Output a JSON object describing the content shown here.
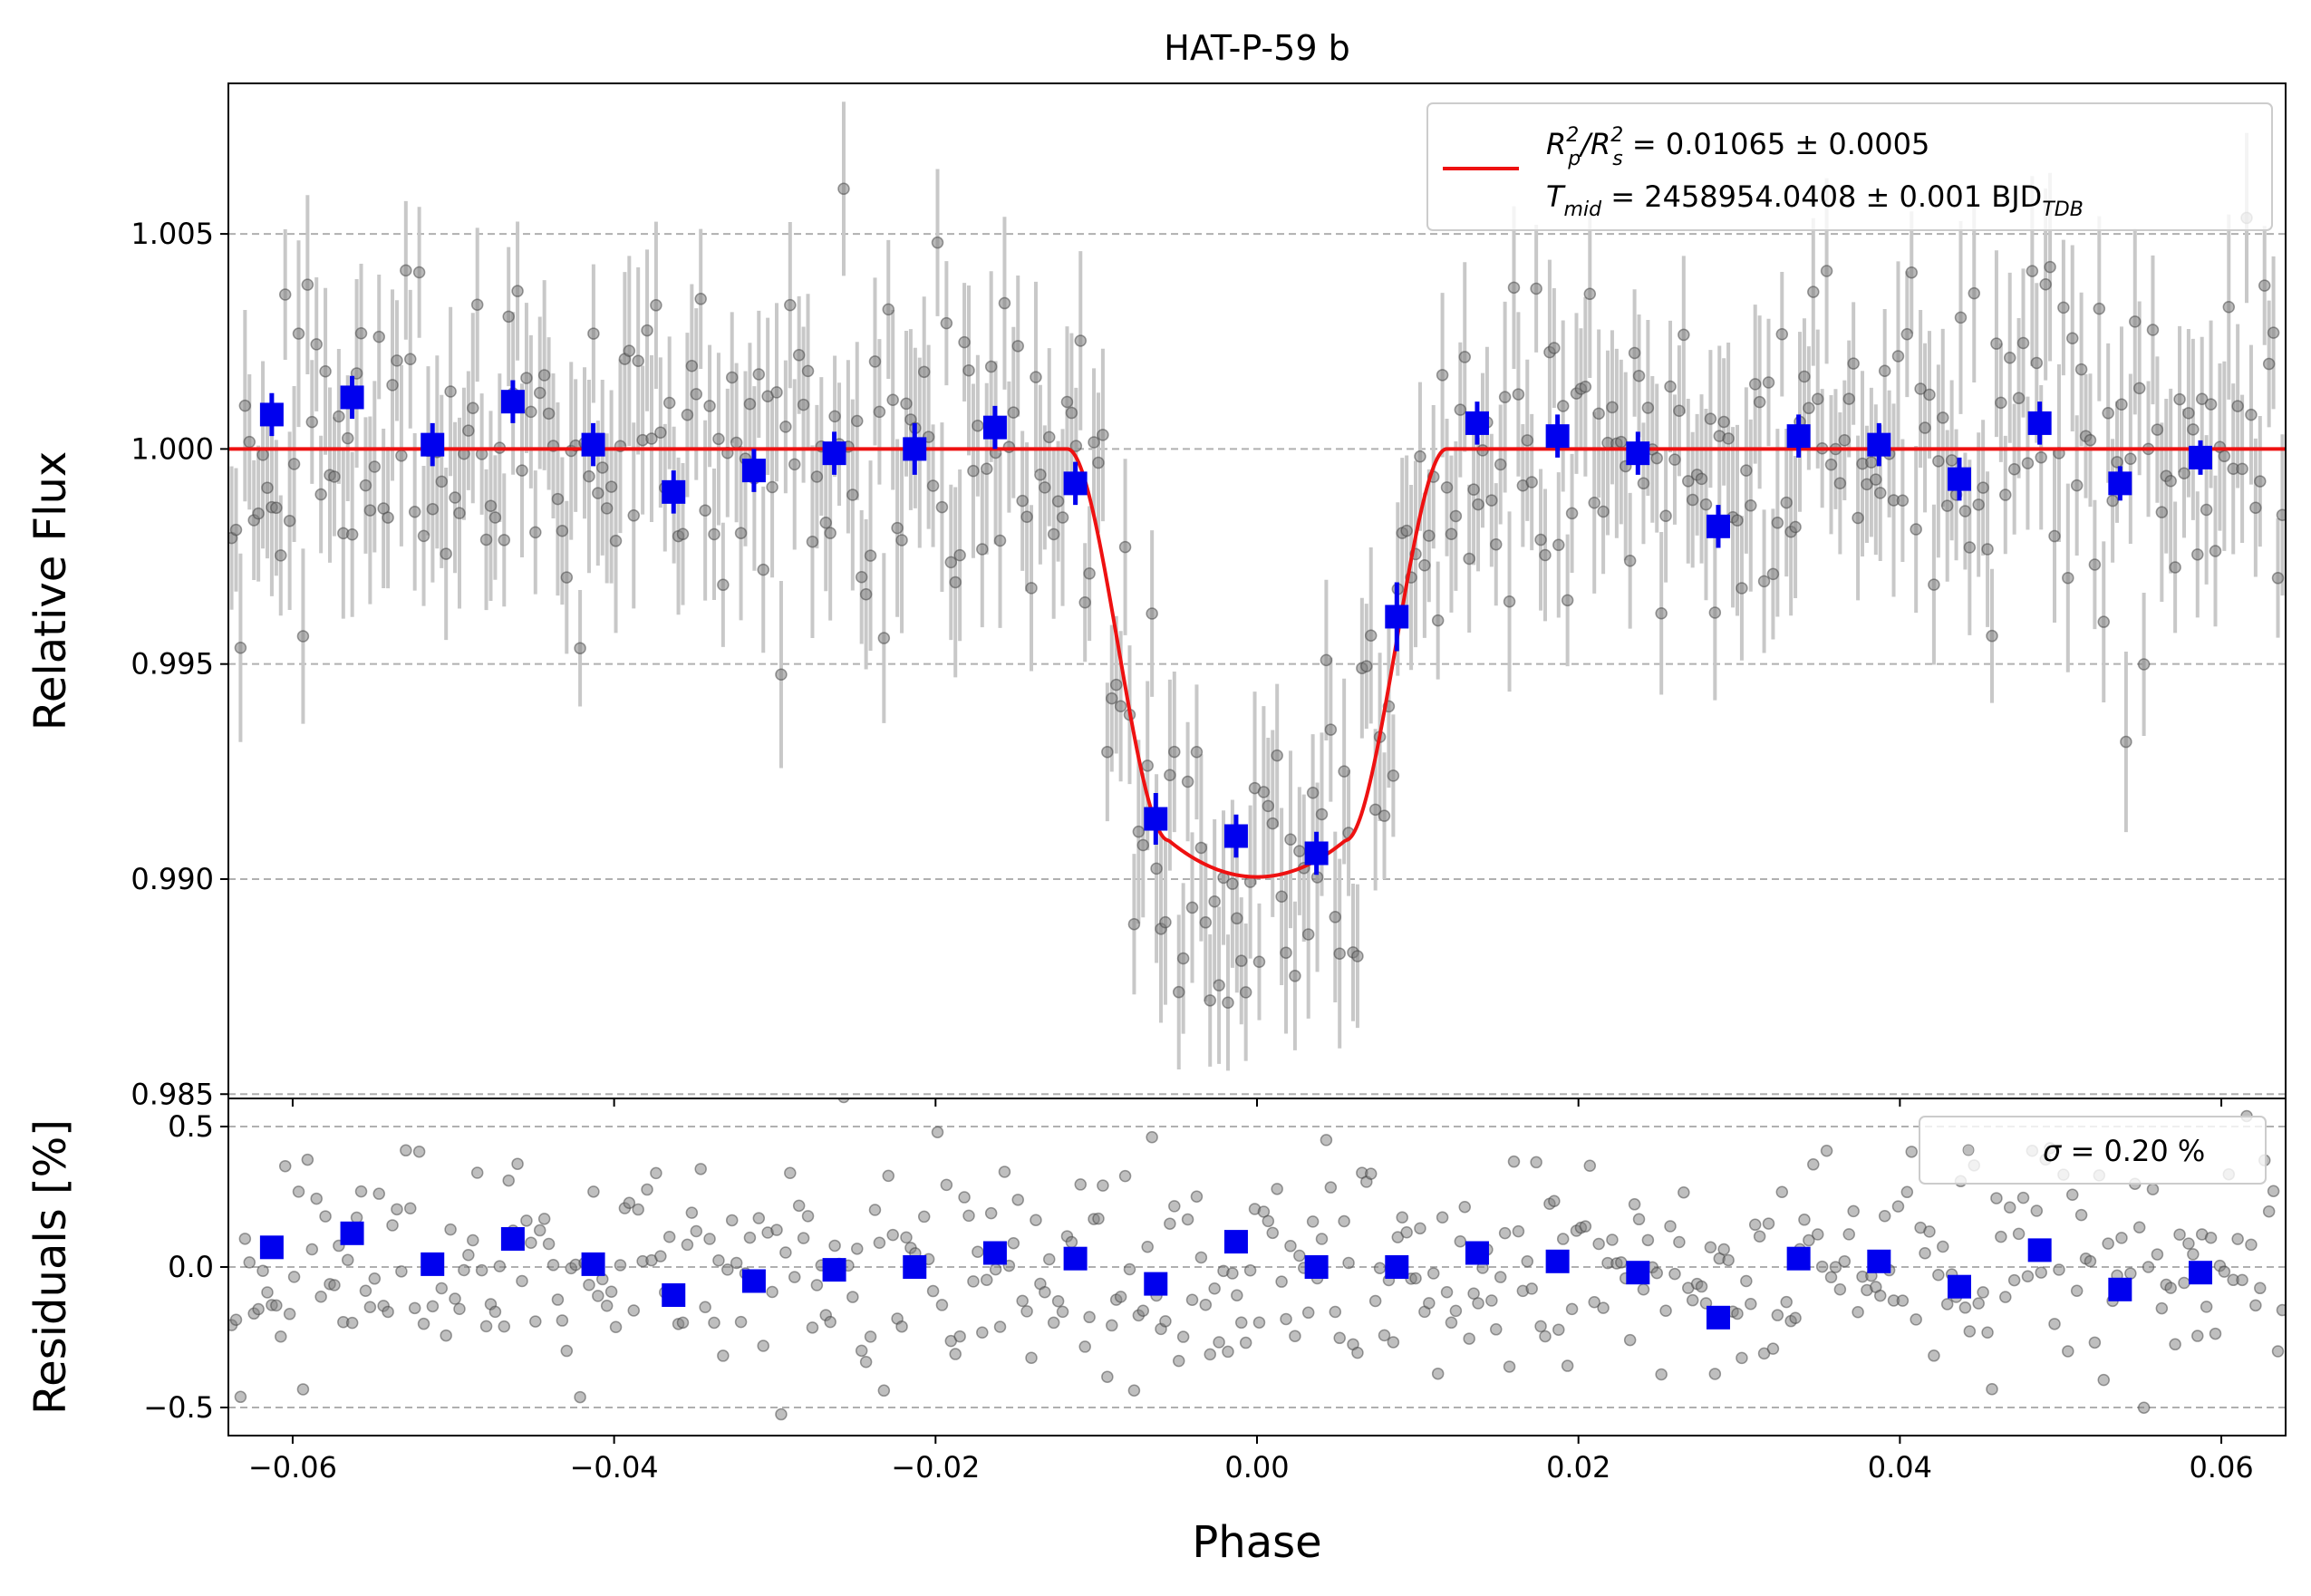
{
  "chart_data": [
    {
      "type": "scatter",
      "panel": "top",
      "title": "HAT-P-59 b",
      "xlabel": "",
      "ylabel": "Relative Flux",
      "xlim": [
        -0.064,
        0.064
      ],
      "ylim": [
        0.9849,
        1.0085
      ],
      "yticks": [
        0.985,
        0.99,
        0.995,
        1.0,
        1.005
      ],
      "ytick_labels": [
        "0.985",
        "0.990",
        "0.995",
        "1.000",
        "1.005"
      ],
      "grid": "horizontal dashed",
      "legend": {
        "position": "top-right",
        "line_color": "#ee1111",
        "entry1_pre": "R",
        "entry1_sub_a": "p",
        "entry1_sup_a": "2",
        "entry1_slash": "/R",
        "entry1_sub_b": "s",
        "entry1_sup_b": "2",
        "entry1_value": " = 0.01065 ± 0.0005",
        "entry2_pre": "T",
        "entry2_sub": "mid",
        "entry2_value": " = 2458954.0408 ± 0.001 BJD",
        "entry2_sub_b": "TDB"
      },
      "model": {
        "name": "transit model",
        "color": "#ee1111",
        "baseline": 1.0,
        "depth_fraction": 0.01065,
        "contact_phases": [
          -0.0118,
          -0.0055,
          0.0055,
          0.0118
        ],
        "center_flux": 0.99005
      },
      "binned": {
        "color": "#0000ee",
        "x": [
          -0.0613,
          -0.0563,
          -0.0513,
          -0.0463,
          -0.0413,
          -0.0363,
          -0.0313,
          -0.0263,
          -0.0213,
          -0.0163,
          -0.0113,
          -0.0063,
          -0.0013,
          0.0037,
          0.0087,
          0.0137,
          0.0187,
          0.0237,
          0.0287,
          0.0337,
          0.0387,
          0.0437,
          0.0487,
          0.0537,
          0.0587
        ],
        "y": [
          1.0008,
          1.0012,
          1.0001,
          1.0011,
          1.0001,
          0.999,
          0.9995,
          0.9999,
          1.0,
          1.0005,
          0.9992,
          0.9914,
          0.991,
          0.9906,
          0.9961,
          1.0006,
          1.0003,
          0.9999,
          0.9982,
          1.0003,
          1.0001,
          0.9993,
          1.0006,
          0.9992,
          0.9998
        ],
        "yerr": [
          0.0005,
          0.0005,
          0.0005,
          0.0005,
          0.0005,
          0.0005,
          0.0005,
          0.0005,
          0.0006,
          0.0005,
          0.0005,
          0.0006,
          0.0005,
          0.0005,
          0.0008,
          0.0005,
          0.0005,
          0.0005,
          0.0005,
          0.0005,
          0.0005,
          0.0005,
          0.0005,
          0.0004,
          0.0004
        ]
      },
      "raw": {
        "color": "#808080",
        "n_points": 460,
        "x_range": [
          -0.0638,
          0.0638
        ],
        "scatter_percent": 0.2,
        "typical_yerr": 0.0018
      }
    },
    {
      "type": "scatter",
      "panel": "bottom",
      "xlabel": "Phase",
      "ylabel": "Residuals [%]",
      "xlim": [
        -0.064,
        0.064
      ],
      "ylim": [
        -0.6,
        0.6
      ],
      "xticks": [
        -0.06,
        -0.04,
        -0.02,
        0.0,
        0.02,
        0.04,
        0.06
      ],
      "xtick_labels": [
        "−0.06",
        "−0.04",
        "−0.02",
        "0.00",
        "0.02",
        "0.04",
        "0.06"
      ],
      "yticks": [
        -0.5,
        0.0,
        0.5
      ],
      "ytick_labels": [
        "−0.5",
        "0.0",
        "0.5"
      ],
      "grid": "horizontal dashed",
      "legend": {
        "position": "top-right",
        "sigma_symbol": "σ",
        "text": " = 0.20 %"
      },
      "binned": {
        "color": "#0000ee",
        "x": [
          -0.0613,
          -0.0563,
          -0.0513,
          -0.0463,
          -0.0413,
          -0.0363,
          -0.0313,
          -0.0263,
          -0.0213,
          -0.0163,
          -0.0113,
          -0.0063,
          -0.0013,
          0.0037,
          0.0087,
          0.0137,
          0.0187,
          0.0237,
          0.0287,
          0.0337,
          0.0387,
          0.0437,
          0.0487,
          0.0537,
          0.0587
        ],
        "y": [
          0.07,
          0.12,
          0.01,
          0.1,
          0.01,
          -0.1,
          -0.05,
          -0.01,
          0.0,
          0.05,
          0.03,
          -0.06,
          0.09,
          0.0,
          0.0,
          0.05,
          0.02,
          -0.02,
          -0.18,
          0.03,
          0.02,
          -0.07,
          0.06,
          -0.08,
          -0.02
        ]
      }
    }
  ]
}
